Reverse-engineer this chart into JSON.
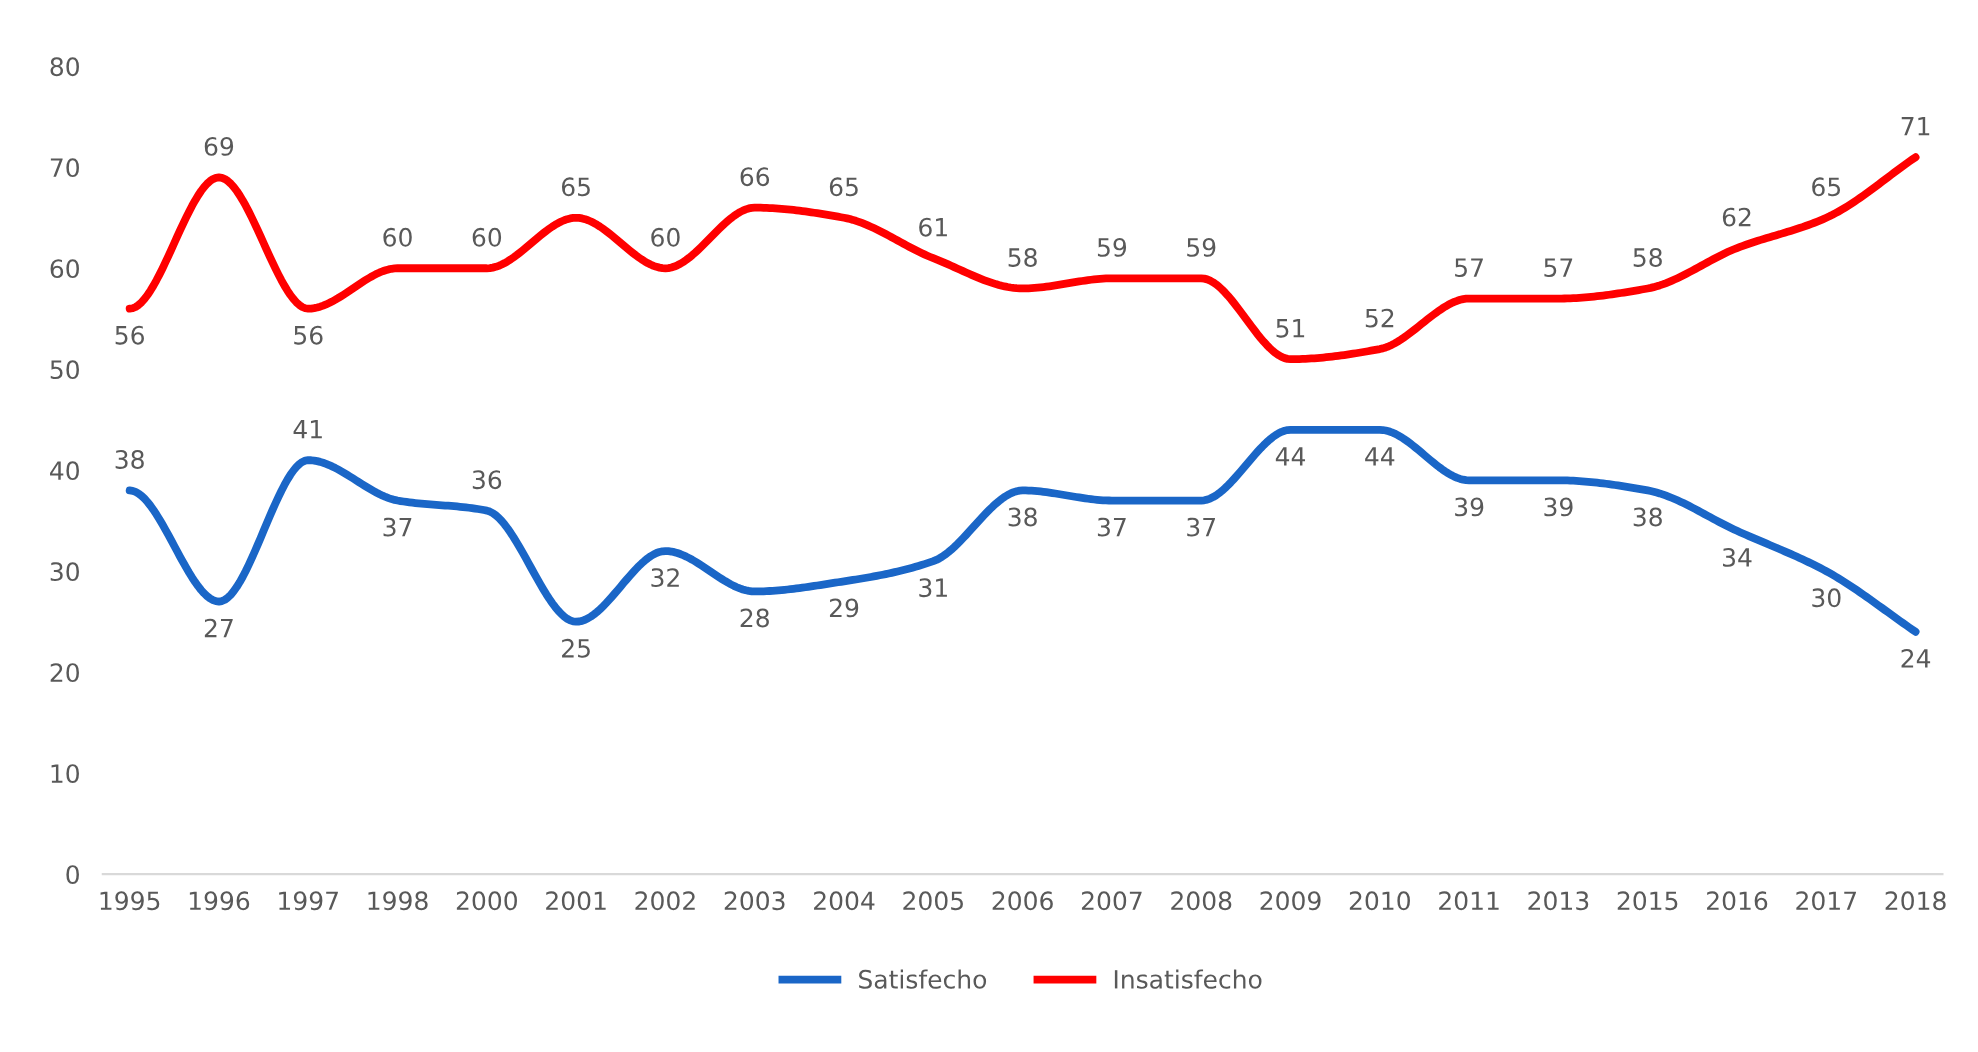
{
  "chart_data": {
    "type": "line",
    "categories": [
      "1995",
      "1996",
      "1997",
      "1998",
      "2000",
      "2001",
      "2002",
      "2003",
      "2004",
      "2005",
      "2006",
      "2007",
      "2008",
      "2009",
      "2010",
      "2011",
      "2013",
      "2015",
      "2016",
      "2017",
      "2018"
    ],
    "series": [
      {
        "name": "Satisfecho",
        "color": "#1a66c7",
        "values": [
          38,
          27,
          41,
          37,
          36,
          25,
          32,
          28,
          29,
          31,
          38,
          37,
          37,
          44,
          44,
          39,
          39,
          38,
          34,
          30,
          24
        ]
      },
      {
        "name": "Insatisfecho",
        "color": "#ff0000",
        "values": [
          56,
          69,
          56,
          60,
          60,
          65,
          60,
          66,
          65,
          61,
          58,
          59,
          59,
          51,
          52,
          57,
          57,
          58,
          62,
          65,
          71
        ]
      }
    ],
    "ylim": [
      0,
      80
    ],
    "yticks": [
      0,
      10,
      20,
      30,
      40,
      50,
      60,
      70,
      80
    ],
    "legend": "bottom",
    "data_labels": true,
    "marker": "none",
    "line_style": "solid"
  }
}
